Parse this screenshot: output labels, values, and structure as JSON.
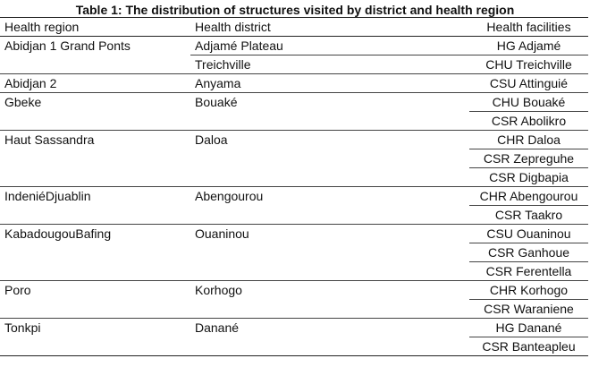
{
  "caption": "Table 1: The distribution of structures visited by district and health region",
  "headers": {
    "region": "Health region",
    "district": "Health district",
    "facilities": "Health facilities"
  },
  "rows": [
    {
      "region": "Abidjan 1 Grand Ponts",
      "district": "Adjamé Plateau",
      "facility": "HG  Adjamé"
    },
    {
      "region": "",
      "district": "Treichville",
      "facility": "CHU Treichville"
    },
    {
      "region": "Abidjan 2",
      "district": "Anyama",
      "facility": "CSU  Attinguié"
    },
    {
      "region": "Gbeke",
      "district": "Bouaké",
      "facility": "CHU Bouaké"
    },
    {
      "region": "",
      "district": "",
      "facility": "CSR Abolikro"
    },
    {
      "region": "Haut Sassandra",
      "district": "Daloa",
      "facility": "CHR Daloa"
    },
    {
      "region": "",
      "district": "",
      "facility": "CSR Zepreguhe"
    },
    {
      "region": "",
      "district": "",
      "facility": "CSR Digbapia"
    },
    {
      "region": "IndeniéDjuablin",
      "district": "Abengourou",
      "facility": "CHR Abengourou"
    },
    {
      "region": "",
      "district": "",
      "facility": "CSR Taakro"
    },
    {
      "region": "KabadougouBafing",
      "district": "Ouaninou",
      "facility": "CSU Ouaninou"
    },
    {
      "region": "",
      "district": "",
      "facility": "CSR Ganhoue"
    },
    {
      "region": "",
      "district": "",
      "facility": "CSR Ferentella"
    },
    {
      "region": "Poro",
      "district": "Korhogo",
      "facility": "CHR Korhogo"
    },
    {
      "region": "",
      "district": "",
      "facility": "CSR Waraniene"
    },
    {
      "region": "Tonkpi",
      "district": "Danané",
      "facility": "HG Danané"
    },
    {
      "region": "",
      "district": "",
      "facility": "CSR Banteapleu"
    }
  ]
}
